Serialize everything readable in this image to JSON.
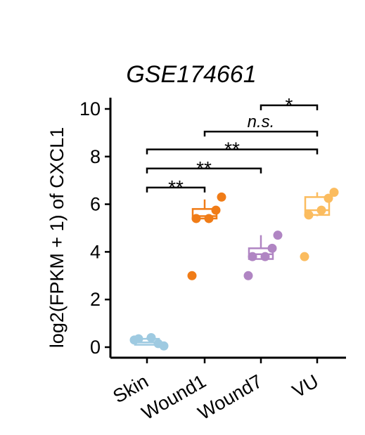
{
  "chart_data": {
    "type": "box-scatter",
    "title": "GSE174661",
    "ylabel": "log2(FPKM + 1) of CXCL1",
    "xlabel": "",
    "ylim": [
      -0.5,
      10.4
    ],
    "yticks": [
      0,
      2,
      4,
      6,
      8,
      10
    ],
    "grid": false,
    "categories": [
      "Skin",
      "Wound1",
      "Wound7",
      "VU"
    ],
    "colors": [
      "#9ecae1",
      "#f07c17",
      "#b085c3",
      "#fbbc5f"
    ],
    "boxes": [
      {
        "category": "Skin",
        "min": 0.1,
        "q1": 0.1,
        "median": 0.2,
        "q3": 0.35,
        "max": 0.4
      },
      {
        "category": "Wound1",
        "min": 5.4,
        "q1": 5.4,
        "median": 5.5,
        "q3": 5.8,
        "max": 6.2
      },
      {
        "category": "Wound7",
        "min": 3.7,
        "q1": 3.7,
        "median": 3.9,
        "q3": 4.15,
        "max": 4.7
      },
      {
        "category": "VU",
        "min": 5.5,
        "q1": 5.55,
        "median": 5.75,
        "q3": 6.3,
        "max": 6.5
      }
    ],
    "points": [
      {
        "category": "Skin",
        "values": [
          0.3,
          0.4,
          0.35,
          0.15,
          0.05
        ]
      },
      {
        "category": "Wound1",
        "values": [
          3.0,
          5.4,
          5.4,
          5.75,
          6.3
        ]
      },
      {
        "category": "Wound7",
        "values": [
          3.0,
          3.8,
          3.8,
          4.15,
          4.7
        ]
      },
      {
        "category": "VU",
        "values": [
          3.8,
          5.75,
          5.55,
          6.25,
          6.5
        ]
      }
    ],
    "comparisons": [
      {
        "from": "Skin",
        "to": "Wound1",
        "y": 6.7,
        "label": "**"
      },
      {
        "from": "Skin",
        "to": "Wound7",
        "y": 7.5,
        "label": "**"
      },
      {
        "from": "Skin",
        "to": "VU",
        "y": 8.3,
        "label": "**"
      },
      {
        "from": "Wound1",
        "to": "VU",
        "y": 9.05,
        "label": "n.s."
      },
      {
        "from": "Wound7",
        "to": "VU",
        "y": 10.15,
        "label": "*"
      }
    ]
  }
}
